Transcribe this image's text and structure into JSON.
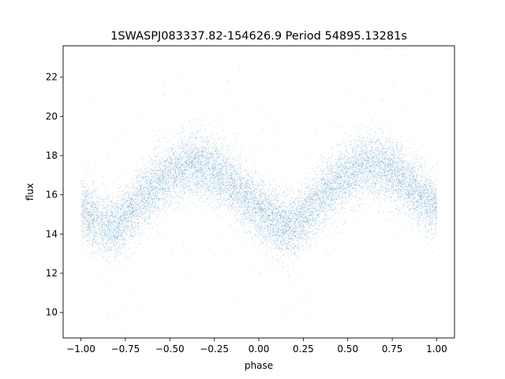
{
  "chart_data": {
    "type": "scatter",
    "title": "1SWASPJ083337.82-154626.9 Period 54895.13281s",
    "xlabel": "phase",
    "ylabel": "flux",
    "xlim": [
      -1.1,
      1.1
    ],
    "ylim": [
      8.7,
      23.6
    ],
    "xticks": [
      -1.0,
      -0.75,
      -0.5,
      -0.25,
      0.0,
      0.25,
      0.5,
      0.75,
      1.0
    ],
    "xtick_labels": [
      "−1.00",
      "−0.75",
      "−0.50",
      "−0.25",
      "0.00",
      "0.25",
      "0.50",
      "0.75",
      "1.00"
    ],
    "yticks": [
      10,
      12,
      14,
      16,
      18,
      20,
      22
    ],
    "ytick_labels": [
      "10",
      "12",
      "14",
      "16",
      "18",
      "20",
      "22"
    ],
    "grid": false,
    "marker_color": "#1f77b4",
    "series": [
      {
        "phase": [
          -1.0,
          -0.9,
          -0.8,
          -0.7,
          -0.6,
          -0.5,
          -0.4,
          -0.3,
          -0.2,
          -0.1,
          0.0,
          0.1,
          0.2,
          0.3,
          0.4,
          0.5,
          0.6,
          0.7,
          0.8,
          0.9,
          1.0
        ],
        "flux": [
          15.3,
          14.6,
          14.4,
          15.4,
          16.4,
          17.0,
          17.6,
          17.4,
          16.9,
          16.1,
          15.3,
          14.6,
          14.4,
          15.4,
          16.4,
          17.0,
          17.6,
          17.4,
          16.9,
          16.1,
          15.3
        ],
        "scatter_sigma": 0.8,
        "points": 14000
      }
    ]
  }
}
